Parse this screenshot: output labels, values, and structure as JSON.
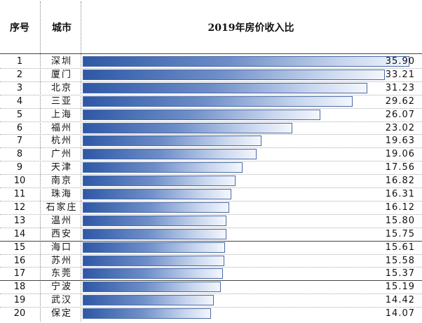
{
  "header": {
    "rank_label": "序号",
    "city_label": "城市",
    "title": "2019年房价收入比"
  },
  "chart_data": {
    "type": "bar",
    "title": "2019年房价收入比",
    "ranks": [
      "1",
      "2",
      "3",
      "4",
      "5",
      "6",
      "7",
      "8",
      "9",
      "10",
      "11",
      "12",
      "13",
      "14",
      "15",
      "16",
      "17",
      "18",
      "19",
      "20"
    ],
    "categories": [
      "深圳",
      "厦门",
      "北京",
      "三亚",
      "上海",
      "福州",
      "杭州",
      "广州",
      "天津",
      "南京",
      "珠海",
      "石家庄",
      "温州",
      "西安",
      "海口",
      "苏州",
      "东莞",
      "宁波",
      "武汉",
      "保定"
    ],
    "values": [
      35.9,
      33.21,
      31.23,
      29.62,
      26.07,
      23.02,
      19.63,
      19.06,
      17.56,
      16.82,
      16.31,
      16.12,
      15.8,
      15.75,
      15.61,
      15.58,
      15.37,
      15.19,
      14.42,
      14.07
    ],
    "value_labels": [
      "35.90",
      "33.21",
      "31.23",
      "29.62",
      "26.07",
      "23.02",
      "19.63",
      "19.06",
      "17.56",
      "16.82",
      "16.31",
      "16.12",
      "15.80",
      "15.75",
      "15.61",
      "15.58",
      "15.37",
      "15.19",
      "14.42",
      "14.07"
    ],
    "orientation": "horizontal",
    "xlim": [
      0,
      36.5
    ],
    "bar_color": "#2e58a6"
  }
}
